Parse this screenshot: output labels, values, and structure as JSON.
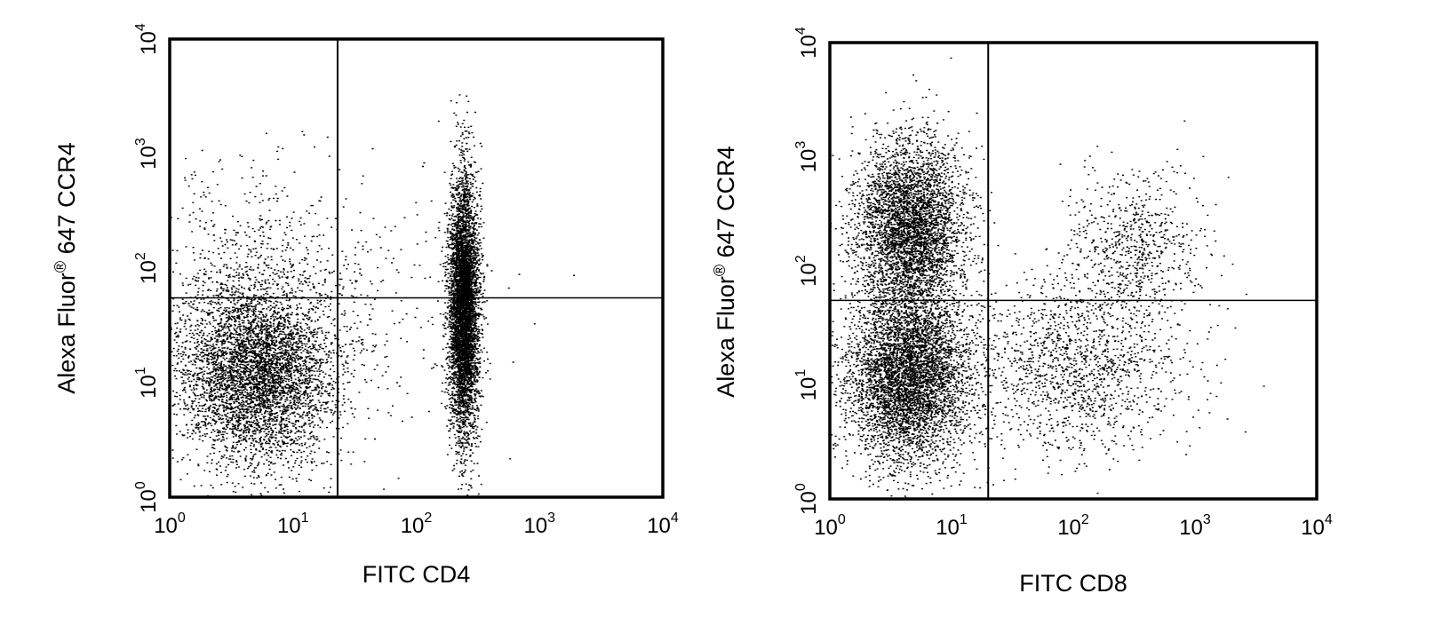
{
  "chart_data": [
    {
      "type": "scatter",
      "title": "",
      "xlabel": "FITC CD4",
      "ylabel_main": "Alexa Fluor",
      "ylabel_mark": "®",
      "ylabel_rest": " 647 CCR4",
      "x_scale": "log",
      "y_scale": "log",
      "xlim": [
        1,
        10000
      ],
      "ylim": [
        1,
        10000
      ],
      "grid": false,
      "x_ticks": [
        1,
        10,
        100,
        1000,
        10000
      ],
      "y_ticks": [
        1,
        10,
        100,
        1000,
        10000
      ],
      "tick_base": "10",
      "tick_exponents": [
        "0",
        "1",
        "2",
        "3",
        "4"
      ],
      "quadrant_gate": {
        "x": 23,
        "y": 55
      },
      "populations": [
        {
          "name": "",
          "x_center": 5,
          "y_center": 13,
          "x_spread_dec": 0.32,
          "y_spread_dec": 0.4,
          "count": 5200
        },
        {
          "name": "",
          "x_center": 240,
          "y_center": 45,
          "x_spread_dec": 0.06,
          "y_spread_dec": 0.55,
          "count": 5600
        },
        {
          "name": "",
          "x_center": 5,
          "y_center": 150,
          "x_spread_dec": 0.45,
          "y_spread_dec": 0.45,
          "count": 450
        },
        {
          "name": "",
          "x_center": 60,
          "y_center": 40,
          "x_spread_dec": 0.45,
          "y_spread_dec": 0.6,
          "count": 180
        }
      ]
    },
    {
      "type": "scatter",
      "title": "",
      "xlabel": "FITC CD8",
      "ylabel_main": "Alexa Fluor",
      "ylabel_mark": "®",
      "ylabel_rest": " 647 CCR4",
      "x_scale": "log",
      "y_scale": "log",
      "xlim": [
        1,
        10000
      ],
      "ylim": [
        1,
        10000
      ],
      "grid": false,
      "x_ticks": [
        1,
        10,
        100,
        1000,
        10000
      ],
      "y_ticks": [
        1,
        10,
        100,
        1000,
        10000
      ],
      "tick_base": "10",
      "tick_exponents": [
        "0",
        "1",
        "2",
        "3",
        "4"
      ],
      "quadrant_gate": {
        "x": 20,
        "y": 55
      },
      "populations": [
        {
          "name": "",
          "x_center": 4.5,
          "y_center": 12,
          "x_spread_dec": 0.25,
          "y_spread_dec": 0.38,
          "count": 5000
        },
        {
          "name": "",
          "x_center": 4.5,
          "y_center": 250,
          "x_spread_dec": 0.22,
          "y_spread_dec": 0.38,
          "count": 4200
        },
        {
          "name": "",
          "x_center": 100,
          "y_center": 15,
          "x_spread_dec": 0.45,
          "y_spread_dec": 0.4,
          "count": 1500
        },
        {
          "name": "",
          "x_center": 330,
          "y_center": 160,
          "x_spread_dec": 0.28,
          "y_spread_dec": 0.35,
          "count": 700
        }
      ]
    }
  ]
}
